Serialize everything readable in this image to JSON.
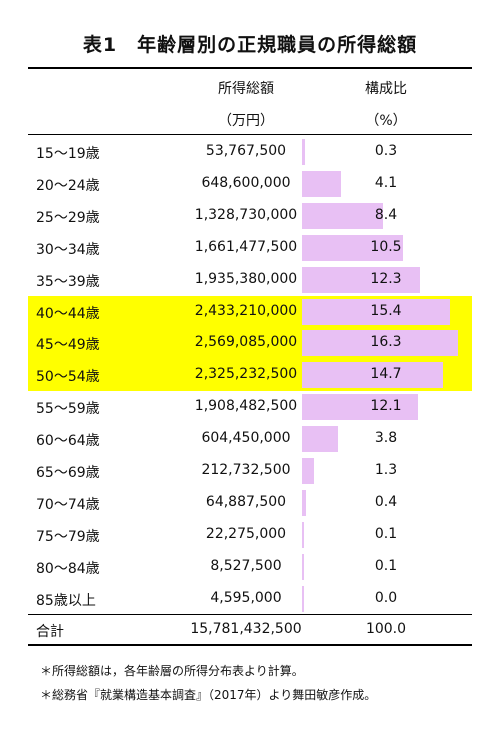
{
  "title": "表1　年齢層別の正規職員の所得総額",
  "header": {
    "col2_line1": "所得総額",
    "col2_line2": "（万円）",
    "col3_line1": "構成比",
    "col3_line2": "（%）"
  },
  "colors": {
    "highlight": "#ffff00",
    "bar": "#e8c0f4"
  },
  "rows": [
    {
      "age": "15～19歳",
      "amount": "53,767,500",
      "pct": "0.3",
      "pct_value": 0.3,
      "highlight": false
    },
    {
      "age": "20～24歳",
      "amount": "648,600,000",
      "pct": "4.1",
      "pct_value": 4.1,
      "highlight": false
    },
    {
      "age": "25～29歳",
      "amount": "1,328,730,000",
      "pct": "8.4",
      "pct_value": 8.4,
      "highlight": false
    },
    {
      "age": "30～34歳",
      "amount": "1,661,477,500",
      "pct": "10.5",
      "pct_value": 10.5,
      "highlight": false
    },
    {
      "age": "35～39歳",
      "amount": "1,935,380,000",
      "pct": "12.3",
      "pct_value": 12.3,
      "highlight": false
    },
    {
      "age": "40～44歳",
      "amount": "2,433,210,000",
      "pct": "15.4",
      "pct_value": 15.4,
      "highlight": true
    },
    {
      "age": "45～49歳",
      "amount": "2,569,085,000",
      "pct": "16.3",
      "pct_value": 16.3,
      "highlight": true
    },
    {
      "age": "50～54歳",
      "amount": "2,325,232,500",
      "pct": "14.7",
      "pct_value": 14.7,
      "highlight": true
    },
    {
      "age": "55～59歳",
      "amount": "1,908,482,500",
      "pct": "12.1",
      "pct_value": 12.1,
      "highlight": false
    },
    {
      "age": "60～64歳",
      "amount": "604,450,000",
      "pct": "3.8",
      "pct_value": 3.8,
      "highlight": false
    },
    {
      "age": "65～69歳",
      "amount": "212,732,500",
      "pct": "1.3",
      "pct_value": 1.3,
      "highlight": false
    },
    {
      "age": "70～74歳",
      "amount": "64,887,500",
      "pct": "0.4",
      "pct_value": 0.4,
      "highlight": false
    },
    {
      "age": "75～79歳",
      "amount": "22,275,000",
      "pct": "0.1",
      "pct_value": 0.1,
      "highlight": false
    },
    {
      "age": "80～84歳",
      "amount": "8,527,500",
      "pct": "0.1",
      "pct_value": 0.1,
      "highlight": false
    },
    {
      "age": "85歳以上",
      "amount": "4,595,000",
      "pct": "0.0",
      "pct_value": 0.0,
      "highlight": false
    }
  ],
  "total": {
    "age": "合計",
    "amount": "15,781,432,500",
    "pct": "100.0"
  },
  "notes": [
    "＊所得総額は，各年齢層の所得分布表より計算。",
    "＊総務省『就業構造基本調査』（2017年）より舞田敏彦作成。"
  ]
}
